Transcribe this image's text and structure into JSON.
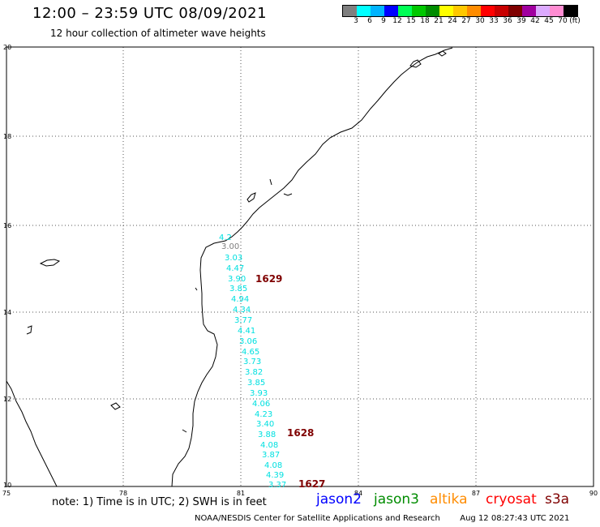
{
  "header": {
    "title": "12:00 – 23:59 UTC 08/09/2021",
    "subtitle": "12 hour collection of altimeter wave heights"
  },
  "scale": {
    "colors": [
      "#7f7f7f",
      "#00ffff",
      "#00b4ff",
      "#0000ff",
      "#00ff55",
      "#00c800",
      "#008c00",
      "#ffff00",
      "#ffc800",
      "#ff8c00",
      "#ff0000",
      "#c80000",
      "#7f0000",
      "#a0009f",
      "#dcaaff",
      "#ff8cd2",
      "#000000"
    ],
    "labels": [
      "3",
      "6",
      "9",
      "12",
      "15",
      "18",
      "21",
      "24",
      "27",
      "30",
      "33",
      "36",
      "39",
      "42",
      "45",
      "70",
      "(ft)"
    ]
  },
  "axes": {
    "x_ticks": [
      "75",
      "78",
      "81",
      "84",
      "87",
      "90"
    ],
    "y_ticks": [
      "20",
      "18",
      "16",
      "14",
      "12",
      "10"
    ]
  },
  "wave_heights": {
    "color": "#00e0e0",
    "values": [
      "4.2",
      "3.00",
      "3.03",
      "4.47",
      "3.90",
      "3.85",
      "4.94",
      "4.34",
      "3.77",
      "4.41",
      "3.06",
      "4.65",
      "3.73",
      "3.82",
      "3.85",
      "3.93",
      "4.06",
      "4.23",
      "3.40",
      "3.88",
      "4.08",
      "3.87",
      "4.08",
      "4.39",
      "3.37"
    ]
  },
  "pass_labels": [
    {
      "text": "1629",
      "color": "#7f0000"
    },
    {
      "text": "1628",
      "color": "#7f0000"
    },
    {
      "text": "1627",
      "color": "#7f0000"
    }
  ],
  "note": "note: 1) Time is in UTC; 2) SWH is in feet",
  "legend": [
    {
      "name": "jason2",
      "color": "#0000ff"
    },
    {
      "name": "jason3",
      "color": "#008c00"
    },
    {
      "name": "altika",
      "color": "#ff8c00"
    },
    {
      "name": "cryosat",
      "color": "#ff0000"
    },
    {
      "name": "s3a",
      "color": "#7f0000"
    }
  ],
  "footer": {
    "credit": "NOAA/NESDIS Center for Satellite Applications and Research",
    "timestamp": "Aug 12 08:27:43 UTC 2021"
  }
}
